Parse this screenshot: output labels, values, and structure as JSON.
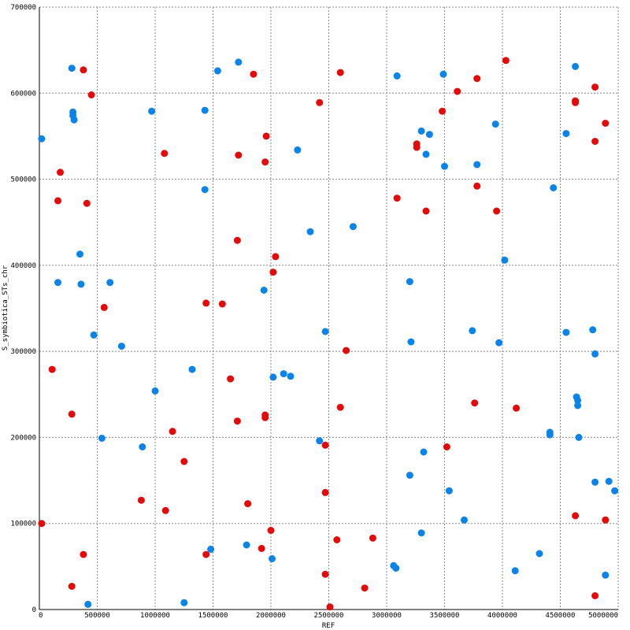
{
  "chart_data": {
    "type": "scatter",
    "xlabel": "REF",
    "ylabel": "S_symbiotica_STs_chr",
    "xlim": [
      0,
      5000000
    ],
    "ylim": [
      0,
      700000
    ],
    "x_ticks": [
      "0",
      "500000",
      "1000000",
      "1500000",
      "2000000",
      "2500000",
      "3000000",
      "3500000",
      "4000000",
      "4500000",
      "5000000"
    ],
    "y_ticks": [
      "0",
      "100000",
      "200000",
      "300000",
      "400000",
      "500000",
      "600000",
      "700000"
    ],
    "grid": true,
    "colors": {
      "forward": "#0a84e8",
      "reverse": "#e40a0a"
    },
    "series": [
      {
        "color": "#0a84e8",
        "points": [
          [
            20000,
            547000
          ],
          [
            280000,
            629000
          ],
          [
            290000,
            578000
          ],
          [
            290000,
            574000
          ],
          [
            300000,
            569000
          ],
          [
            350000,
            413000
          ],
          [
            160000,
            380000
          ],
          [
            360000,
            378000
          ],
          [
            610000,
            380000
          ],
          [
            470000,
            319000
          ],
          [
            710000,
            306000
          ],
          [
            540000,
            199000
          ],
          [
            420000,
            6000
          ],
          [
            970000,
            579000
          ],
          [
            1430000,
            580000
          ],
          [
            1430000,
            488000
          ],
          [
            1540000,
            626000
          ],
          [
            1720000,
            636000
          ],
          [
            1000000,
            254000
          ],
          [
            890000,
            189000
          ],
          [
            1320000,
            279000
          ],
          [
            1250000,
            8000
          ],
          [
            1480000,
            70000
          ],
          [
            1790000,
            75000
          ],
          [
            1940000,
            371000
          ],
          [
            2010000,
            59000
          ],
          [
            2020000,
            270000
          ],
          [
            2110000,
            274000
          ],
          [
            2170000,
            271000
          ],
          [
            2230000,
            534000
          ],
          [
            2340000,
            439000
          ],
          [
            2420000,
            196000
          ],
          [
            2470000,
            323000
          ],
          [
            2710000,
            445000
          ],
          [
            3090000,
            620000
          ],
          [
            3060000,
            51000
          ],
          [
            3080000,
            48000
          ],
          [
            3200000,
            381000
          ],
          [
            3210000,
            311000
          ],
          [
            3200000,
            156000
          ],
          [
            3300000,
            89000
          ],
          [
            3300000,
            556000
          ],
          [
            3340000,
            529000
          ],
          [
            3370000,
            552000
          ],
          [
            3320000,
            183000
          ],
          [
            3490000,
            622000
          ],
          [
            3500000,
            515000
          ],
          [
            3540000,
            138000
          ],
          [
            3670000,
            104000
          ],
          [
            3740000,
            324000
          ],
          [
            3780000,
            517000
          ],
          [
            3940000,
            564000
          ],
          [
            3970000,
            310000
          ],
          [
            4020000,
            406000
          ],
          [
            4110000,
            45000
          ],
          [
            4320000,
            65000
          ],
          [
            4410000,
            206000
          ],
          [
            4410000,
            203000
          ],
          [
            4440000,
            490000
          ],
          [
            4550000,
            553000
          ],
          [
            4550000,
            322000
          ],
          [
            4630000,
            631000
          ],
          [
            4640000,
            247000
          ],
          [
            4650000,
            243000
          ],
          [
            4650000,
            237000
          ],
          [
            4660000,
            200000
          ],
          [
            4780000,
            325000
          ],
          [
            4800000,
            297000
          ],
          [
            4800000,
            148000
          ],
          [
            4890000,
            40000
          ],
          [
            4920000,
            149000
          ],
          [
            4970000,
            138000
          ]
        ]
      },
      {
        "color": "#e40a0a",
        "points": [
          [
            20000,
            100000
          ],
          [
            110000,
            279000
          ],
          [
            160000,
            475000
          ],
          [
            180000,
            508000
          ],
          [
            280000,
            227000
          ],
          [
            280000,
            27000
          ],
          [
            380000,
            627000
          ],
          [
            380000,
            64000
          ],
          [
            410000,
            472000
          ],
          [
            450000,
            598000
          ],
          [
            560000,
            351000
          ],
          [
            880000,
            127000
          ],
          [
            1080000,
            530000
          ],
          [
            1090000,
            115000
          ],
          [
            1150000,
            207000
          ],
          [
            1250000,
            172000
          ],
          [
            1440000,
            356000
          ],
          [
            1440000,
            64000
          ],
          [
            1580000,
            355000
          ],
          [
            1650000,
            268000
          ],
          [
            1710000,
            219000
          ],
          [
            1710000,
            429000
          ],
          [
            1720000,
            528000
          ],
          [
            1800000,
            123000
          ],
          [
            1850000,
            622000
          ],
          [
            1920000,
            71000
          ],
          [
            1950000,
            226000
          ],
          [
            1950000,
            223000
          ],
          [
            1950000,
            520000
          ],
          [
            1960000,
            550000
          ],
          [
            2000000,
            92000
          ],
          [
            2020000,
            392000
          ],
          [
            2040000,
            410000
          ],
          [
            2420000,
            589000
          ],
          [
            2470000,
            41000
          ],
          [
            2470000,
            191000
          ],
          [
            2470000,
            136000
          ],
          [
            2510000,
            3000
          ],
          [
            2570000,
            81000
          ],
          [
            2600000,
            235000
          ],
          [
            2600000,
            624000
          ],
          [
            2650000,
            301000
          ],
          [
            2810000,
            25000
          ],
          [
            2880000,
            83000
          ],
          [
            3090000,
            478000
          ],
          [
            3260000,
            541000
          ],
          [
            3260000,
            537000
          ],
          [
            3340000,
            463000
          ],
          [
            3480000,
            579000
          ],
          [
            3520000,
            189000
          ],
          [
            3610000,
            602000
          ],
          [
            3760000,
            240000
          ],
          [
            3780000,
            617000
          ],
          [
            3780000,
            492000
          ],
          [
            3950000,
            463000
          ],
          [
            4030000,
            638000
          ],
          [
            4120000,
            234000
          ],
          [
            4630000,
            591000
          ],
          [
            4630000,
            589000
          ],
          [
            4630000,
            109000
          ],
          [
            4800000,
            607000
          ],
          [
            4800000,
            544000
          ],
          [
            4800000,
            16000
          ],
          [
            4890000,
            565000
          ],
          [
            4890000,
            104000
          ]
        ]
      }
    ]
  }
}
